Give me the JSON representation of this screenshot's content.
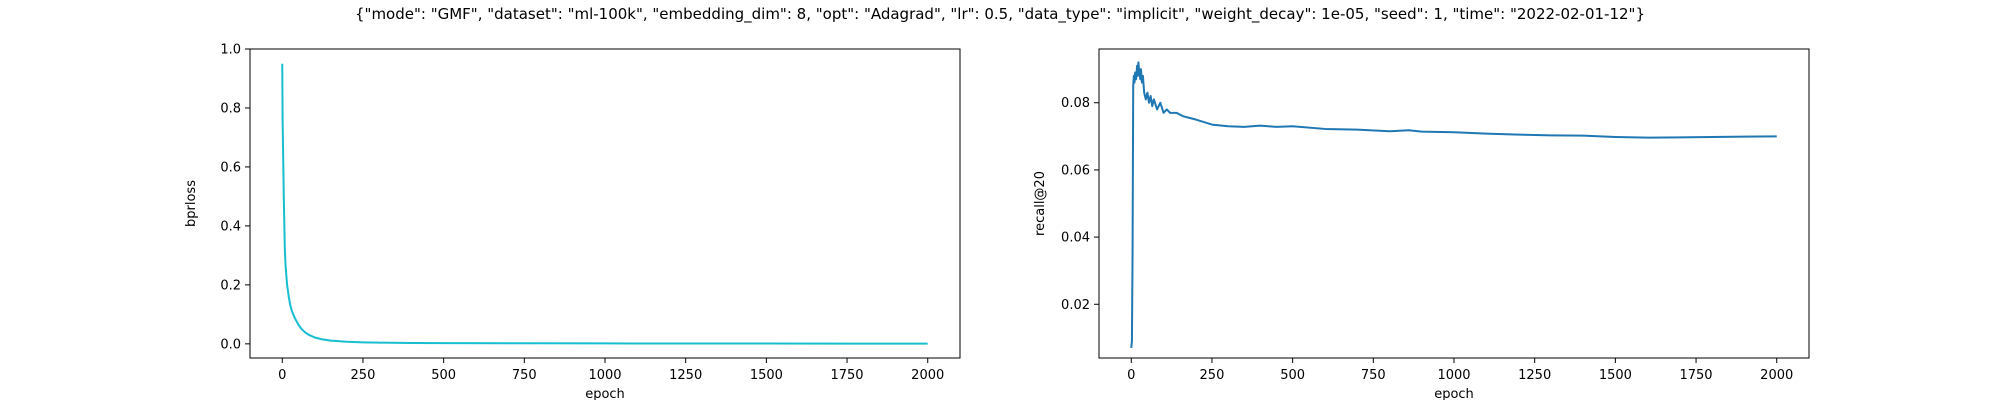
{
  "figure": {
    "suptitle": "{\"mode\": \"GMF\", \"dataset\": \"ml-100k\", \"embedding_dim\": 8, \"opt\": \"Adagrad\", \"lr\": 0.5, \"data_type\": \"implicit\", \"weight_decay\": 1e-05, \"seed\": 1, \"time\": \"2022-02-01-12\"}"
  },
  "chart_data": [
    {
      "type": "line",
      "title": "",
      "xlabel": "epoch",
      "ylabel": "bprloss",
      "xlim": [
        -100,
        2100
      ],
      "ylim": [
        -0.048,
        1.0
      ],
      "xticks": [
        0,
        250,
        500,
        750,
        1000,
        1250,
        1500,
        1750,
        2000
      ],
      "yticks": [
        0.0,
        0.2,
        0.4,
        0.6,
        0.8,
        1.0
      ],
      "ytick_decimals": 1,
      "grid": false,
      "color": "#17becf",
      "series": [
        {
          "x": [
            0,
            1,
            2,
            3,
            4,
            5,
            6,
            7,
            8,
            10,
            12,
            15,
            20,
            25,
            30,
            40,
            50,
            60,
            70,
            80,
            100,
            120,
            150,
            200,
            250,
            300,
            400,
            500,
            750,
            1000,
            1250,
            1500,
            1750,
            2000
          ],
          "y": [
            0.95,
            0.76,
            0.69,
            0.62,
            0.55,
            0.48,
            0.42,
            0.37,
            0.32,
            0.27,
            0.24,
            0.2,
            0.16,
            0.13,
            0.11,
            0.085,
            0.065,
            0.05,
            0.04,
            0.032,
            0.022,
            0.016,
            0.011,
            0.007,
            0.005,
            0.004,
            0.003,
            0.0025,
            0.002,
            0.0015,
            0.0012,
            0.001,
            0.0008,
            0.0007
          ]
        }
      ]
    },
    {
      "type": "line",
      "title": "",
      "xlabel": "epoch",
      "ylabel": "recall@20",
      "xlim": [
        -100,
        2100
      ],
      "ylim": [
        0.004,
        0.096
      ],
      "xticks": [
        0,
        250,
        500,
        750,
        1000,
        1250,
        1500,
        1750,
        2000
      ],
      "yticks": [
        0.02,
        0.04,
        0.06,
        0.08
      ],
      "ytick_decimals": 2,
      "grid": false,
      "color": "#1f77b4",
      "series": [
        {
          "x": [
            0,
            2,
            4,
            6,
            8,
            10,
            12,
            15,
            18,
            20,
            22,
            25,
            28,
            30,
            33,
            36,
            40,
            45,
            50,
            55,
            60,
            65,
            70,
            80,
            90,
            100,
            110,
            120,
            140,
            160,
            180,
            200,
            250,
            300,
            350,
            400,
            450,
            500,
            600,
            700,
            800,
            860,
            900,
            1000,
            1100,
            1200,
            1300,
            1400,
            1500,
            1600,
            1700,
            1800,
            1900,
            2000
          ],
          "y": [
            0.007,
            0.009,
            0.035,
            0.085,
            0.088,
            0.086,
            0.089,
            0.087,
            0.091,
            0.088,
            0.092,
            0.089,
            0.087,
            0.09,
            0.086,
            0.088,
            0.083,
            0.081,
            0.083,
            0.08,
            0.082,
            0.079,
            0.081,
            0.078,
            0.08,
            0.077,
            0.078,
            0.077,
            0.077,
            0.076,
            0.0755,
            0.075,
            0.0735,
            0.073,
            0.0728,
            0.0732,
            0.0728,
            0.073,
            0.0722,
            0.072,
            0.0715,
            0.0718,
            0.0714,
            0.0712,
            0.0708,
            0.0705,
            0.0703,
            0.0702,
            0.0698,
            0.0696,
            0.0697,
            0.0698,
            0.0699,
            0.07
          ]
        }
      ]
    }
  ]
}
